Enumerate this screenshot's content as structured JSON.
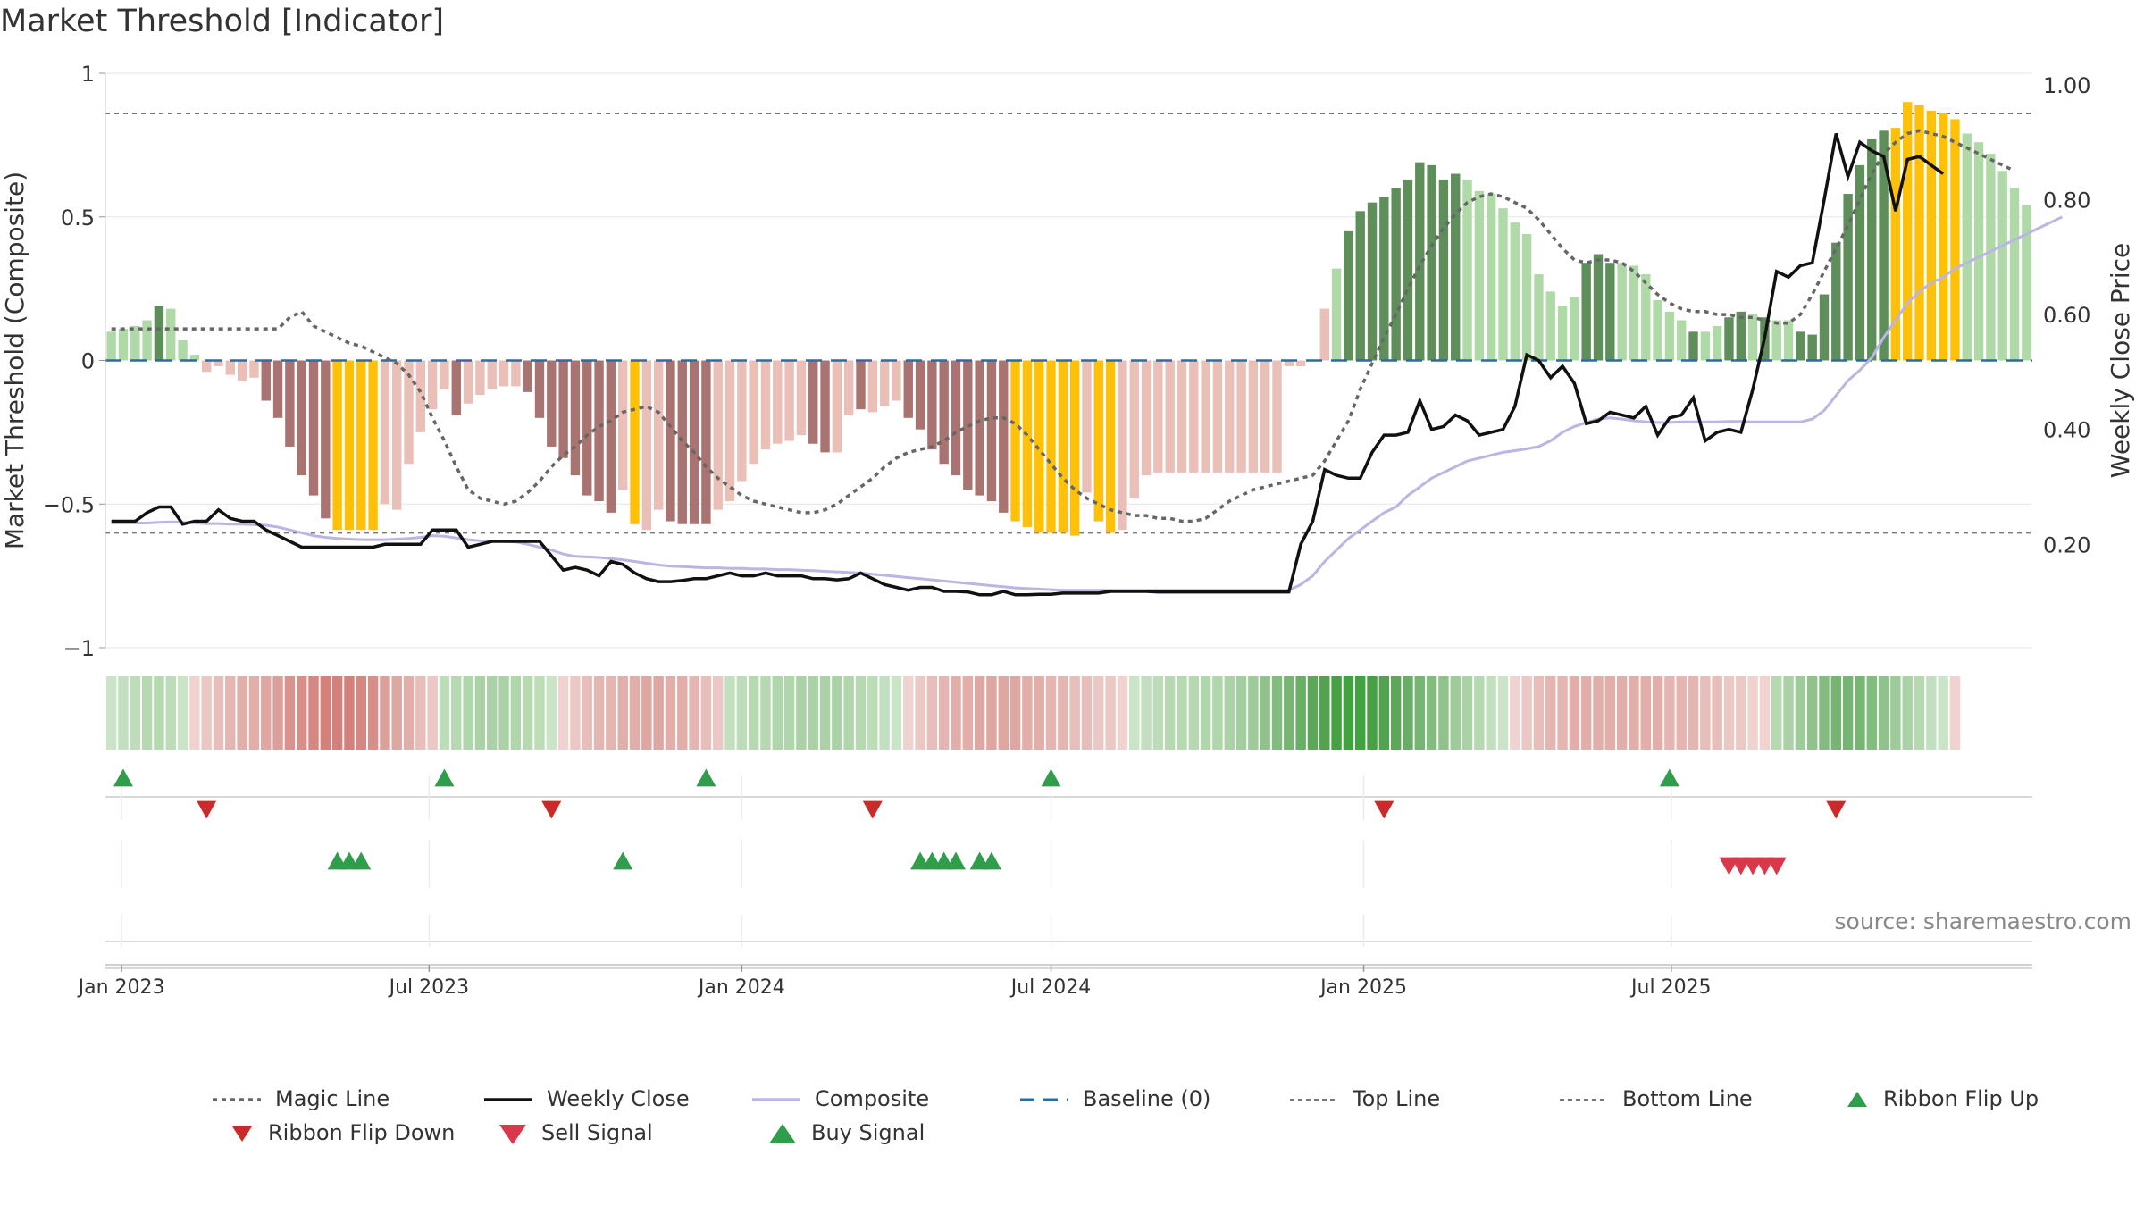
{
  "title": "Market Threshold [Indicator]",
  "source": "source: sharemaestro.com",
  "colors": {
    "pos_strong": "#5e8f5a",
    "pos_weak": "#b0d9a8",
    "neg_strong": "#a87370",
    "neg_weak": "#eabfb8",
    "extreme": "#ffc107",
    "close": "#111111",
    "composite": "#bbb5e3",
    "magic": "#666666",
    "baseline": "#2e6b9e",
    "threshold": "#777777",
    "buy": "#2e9e4a",
    "sell": "#d9384a",
    "flip_down": "#c92a2a"
  },
  "chart_data": {
    "type": "bar",
    "title": "Market Threshold [Indicator]",
    "ylabel": "Market Threshold (Composite)",
    "y2label": "Weekly Close Price",
    "ylim": [
      -1,
      1
    ],
    "y2lim": [
      0.02,
      1.02
    ],
    "yticks": [
      "1",
      "0.5",
      "0",
      "−0.5",
      "−1"
    ],
    "y2ticks": [
      "1.00",
      "0.80",
      "0.60",
      "0.40",
      "0.20"
    ],
    "x_ticks": [
      "Jan 2023",
      "Jul 2023",
      "Jan 2024",
      "Jul 2024",
      "Jan 2025",
      "Jul 2025"
    ],
    "x_start": "2022-12-26",
    "top_line": 0.86,
    "bottom_line": -0.6,
    "baseline": 0,
    "bars": [
      0.1,
      0.11,
      0.12,
      0.14,
      0.19,
      0.18,
      0.07,
      0.02,
      -0.04,
      -0.02,
      -0.05,
      -0.07,
      -0.06,
      -0.14,
      -0.2,
      -0.3,
      -0.4,
      -0.47,
      -0.55,
      -0.59,
      -0.59,
      -0.59,
      -0.59,
      -0.5,
      -0.52,
      -0.36,
      -0.25,
      -0.17,
      -0.1,
      -0.19,
      -0.15,
      -0.12,
      -0.1,
      -0.09,
      -0.09,
      -0.11,
      -0.2,
      -0.3,
      -0.34,
      -0.4,
      -0.47,
      -0.49,
      -0.53,
      -0.45,
      -0.57,
      -0.59,
      -0.52,
      -0.56,
      -0.57,
      -0.57,
      -0.57,
      -0.52,
      -0.49,
      -0.42,
      -0.36,
      -0.31,
      -0.29,
      -0.28,
      -0.26,
      -0.29,
      -0.32,
      -0.32,
      -0.19,
      -0.17,
      -0.18,
      -0.16,
      -0.14,
      -0.2,
      -0.24,
      -0.31,
      -0.36,
      -0.4,
      -0.45,
      -0.47,
      -0.49,
      -0.53,
      -0.56,
      -0.58,
      -0.6,
      -0.6,
      -0.6,
      -0.61,
      -0.46,
      -0.56,
      -0.6,
      -0.59,
      -0.48,
      -0.4,
      -0.39,
      -0.39,
      -0.39,
      -0.39,
      -0.39,
      -0.39,
      -0.39,
      -0.39,
      -0.39,
      -0.39,
      -0.39,
      -0.02,
      -0.02,
      0.0,
      0.18,
      0.32,
      0.45,
      0.52,
      0.55,
      0.57,
      0.6,
      0.63,
      0.69,
      0.68,
      0.63,
      0.65,
      0.63,
      0.59,
      0.58,
      0.53,
      0.48,
      0.44,
      0.3,
      0.24,
      0.19,
      0.22,
      0.34,
      0.37,
      0.34,
      0.34,
      0.33,
      0.3,
      0.21,
      0.17,
      0.14,
      0.1,
      0.1,
      0.12,
      0.15,
      0.17,
      0.16,
      0.15,
      0.14,
      0.14,
      0.1,
      0.09,
      0.23,
      0.41,
      0.58,
      0.68,
      0.77,
      0.8,
      0.81,
      0.9,
      0.89,
      0.87,
      0.86,
      0.84,
      0.79,
      0.76,
      0.72,
      0.66,
      0.6,
      0.54
    ],
    "bar_classes": [
      "pos_weak",
      "pos_weak",
      "pos_weak",
      "pos_weak",
      "pos_strong",
      "pos_weak",
      "pos_weak",
      "pos_weak",
      "neg_weak",
      "neg_weak",
      "neg_weak",
      "neg_weak",
      "neg_weak",
      "neg_strong",
      "neg_strong",
      "neg_strong",
      "neg_strong",
      "neg_strong",
      "neg_strong",
      "extreme",
      "extreme",
      "extreme",
      "extreme",
      "neg_weak",
      "neg_weak",
      "neg_weak",
      "neg_weak",
      "neg_weak",
      "neg_weak",
      "neg_strong",
      "neg_weak",
      "neg_weak",
      "neg_weak",
      "neg_weak",
      "neg_weak",
      "neg_strong",
      "neg_strong",
      "neg_strong",
      "neg_strong",
      "neg_strong",
      "neg_strong",
      "neg_strong",
      "neg_strong",
      "neg_weak",
      "extreme",
      "neg_weak",
      "neg_weak",
      "neg_strong",
      "neg_strong",
      "neg_strong",
      "neg_strong",
      "neg_weak",
      "neg_weak",
      "neg_weak",
      "neg_weak",
      "neg_weak",
      "neg_weak",
      "neg_weak",
      "neg_weak",
      "neg_strong",
      "neg_strong",
      "neg_weak",
      "neg_weak",
      "neg_strong",
      "neg_weak",
      "neg_weak",
      "neg_weak",
      "neg_strong",
      "neg_strong",
      "neg_strong",
      "neg_strong",
      "neg_strong",
      "neg_strong",
      "neg_strong",
      "neg_strong",
      "neg_strong",
      "extreme",
      "extreme",
      "extreme",
      "extreme",
      "extreme",
      "extreme",
      "neg_weak",
      "extreme",
      "extreme",
      "neg_weak",
      "neg_weak",
      "neg_weak",
      "neg_weak",
      "neg_weak",
      "neg_weak",
      "neg_weak",
      "neg_weak",
      "neg_weak",
      "neg_weak",
      "neg_weak",
      "neg_weak",
      "neg_weak",
      "neg_weak",
      "neg_weak",
      "neg_weak",
      "neg_weak",
      "neg_weak",
      "pos_weak",
      "pos_strong",
      "pos_strong",
      "pos_strong",
      "pos_strong",
      "pos_strong",
      "pos_strong",
      "pos_strong",
      "pos_strong",
      "pos_strong",
      "pos_strong",
      "pos_weak",
      "pos_weak",
      "pos_weak",
      "pos_weak",
      "pos_weak",
      "pos_weak",
      "pos_weak",
      "pos_weak",
      "pos_weak",
      "pos_weak",
      "pos_strong",
      "pos_strong",
      "pos_strong",
      "pos_weak",
      "pos_weak",
      "pos_weak",
      "pos_weak",
      "pos_weak",
      "pos_weak",
      "pos_strong",
      "pos_weak",
      "pos_weak",
      "pos_strong",
      "pos_strong",
      "pos_weak",
      "pos_strong",
      "pos_weak",
      "pos_weak",
      "pos_strong",
      "pos_strong",
      "pos_strong",
      "pos_strong",
      "pos_strong",
      "pos_strong",
      "pos_strong",
      "pos_strong",
      "extreme",
      "extreme",
      "extreme",
      "extreme",
      "extreme",
      "extreme",
      "pos_weak",
      "pos_weak",
      "pos_weak",
      "pos_weak",
      "pos_weak",
      "pos_weak",
      "pos_weak"
    ],
    "ribbon_colors": [
      "#c9e4c6",
      "#c2e0bf",
      "#bcddb8",
      "#b6d9b2",
      "#b6d9b2",
      "#bcddb8",
      "#c9e4c6",
      "#f0d3d1",
      "#ecc8c5",
      "#e8beba",
      "#e5b5b1",
      "#e2aeaa",
      "#e2aeaa",
      "#dfa7a2",
      "#dca09b",
      "#d9928d",
      "#d88f89",
      "#d58782",
      "#d3817b",
      "#d3817b",
      "#d3817b",
      "#d58782",
      "#d88f89",
      "#dca09b",
      "#dfa7a2",
      "#e2aeaa",
      "#e8beba",
      "#ecc8c5",
      "#bcddb8",
      "#b6d9b2",
      "#b0d6ac",
      "#aad2a6",
      "#aad2a6",
      "#aad2a6",
      "#b0d6ac",
      "#b6d9b2",
      "#bcddb8",
      "#c9e4c6",
      "#f0d3d1",
      "#ecc8c5",
      "#e8beba",
      "#e5b5b1",
      "#e5b5b1",
      "#e2aeaa",
      "#e2aeaa",
      "#dfa7a2",
      "#dfa7a2",
      "#e2aeaa",
      "#e2aeaa",
      "#e5b5b1",
      "#e8beba",
      "#ecc8c5",
      "#c2e0bf",
      "#bcddb8",
      "#b6d9b2",
      "#b6d9b2",
      "#b0d6ac",
      "#b0d6ac",
      "#aad2a6",
      "#aad2a6",
      "#aad2a6",
      "#aad2a6",
      "#b0d6ac",
      "#b6d9b2",
      "#bcddb8",
      "#c2e0bf",
      "#c9e4c6",
      "#f0d3d1",
      "#ecc8c5",
      "#e8beba",
      "#e5b5b1",
      "#e2aeaa",
      "#e2aeaa",
      "#dfa7a2",
      "#dfa7a2",
      "#dfa7a2",
      "#dfa7a2",
      "#e2aeaa",
      "#e2aeaa",
      "#e5b5b1",
      "#e5b5b1",
      "#e8beba",
      "#e8beba",
      "#ecc8c5",
      "#ecc8c5",
      "#f0d3d1",
      "#c9e4c6",
      "#c2e0bf",
      "#bcddb8",
      "#b6d9b2",
      "#b6d9b2",
      "#b6d9b2",
      "#b0d6ac",
      "#b0d6ac",
      "#aad2a6",
      "#a3cf9f",
      "#9dcb99",
      "#90c38c",
      "#83bc7f",
      "#76b572",
      "#69ae65",
      "#5ca758",
      "#52a24e",
      "#48a045",
      "#40a33f",
      "#40a33f",
      "#48a045",
      "#52a24e",
      "#5ca758",
      "#69ae65",
      "#76b572",
      "#83bc7f",
      "#90c38c",
      "#9dcb99",
      "#aad2a6",
      "#b6d9b2",
      "#c2e0bf",
      "#c9e4c6",
      "#f0d3d1",
      "#ecc8c5",
      "#e8beba",
      "#e5b5b1",
      "#e5b5b1",
      "#e2aeaa",
      "#e2aeaa",
      "#e2aeaa",
      "#e2aeaa",
      "#e2aeaa",
      "#e2aeaa",
      "#e2aeaa",
      "#e2aeaa",
      "#e5b5b1",
      "#e5b5b1",
      "#e5b5b1",
      "#e8beba",
      "#e8beba",
      "#ecc8c5",
      "#ecc8c5",
      "#f0d3d1",
      "#f0d3d1",
      "#b6d9b2",
      "#aad2a6",
      "#9dcb99",
      "#90c38c",
      "#83bc7f",
      "#76b572",
      "#76b572",
      "#76b572",
      "#83bc7f",
      "#90c38c",
      "#9dcb99",
      "#aad2a6",
      "#b6d9b2",
      "#c2e0bf",
      "#c9e4c6",
      "#f0d3d1"
    ],
    "close": [
      0.24,
      0.24,
      0.24,
      0.255,
      0.265,
      0.265,
      0.235,
      0.24,
      0.24,
      0.26,
      0.245,
      0.24,
      0.24,
      0.225,
      0.215,
      0.205,
      0.195,
      0.195,
      0.195,
      0.195,
      0.195,
      0.195,
      0.195,
      0.2,
      0.2,
      0.2,
      0.2,
      0.225,
      0.225,
      0.225,
      0.195,
      0.2,
      0.205,
      0.205,
      0.205,
      0.205,
      0.205,
      0.18,
      0.155,
      0.16,
      0.155,
      0.145,
      0.17,
      0.165,
      0.15,
      0.14,
      0.135,
      0.135,
      0.137,
      0.14,
      0.14,
      0.145,
      0.15,
      0.145,
      0.145,
      0.15,
      0.145,
      0.145,
      0.145,
      0.14,
      0.14,
      0.138,
      0.14,
      0.15,
      0.14,
      0.13,
      0.125,
      0.12,
      0.125,
      0.125,
      0.118,
      0.118,
      0.117,
      0.112,
      0.112,
      0.118,
      0.112,
      0.112,
      0.113,
      0.113,
      0.115,
      0.115,
      0.115,
      0.115,
      0.118,
      0.118,
      0.118,
      0.118,
      0.117,
      0.117,
      0.117,
      0.117,
      0.117,
      0.117,
      0.117,
      0.117,
      0.117,
      0.117,
      0.117,
      0.117,
      0.2,
      0.24,
      0.33,
      0.32,
      0.315,
      0.315,
      0.36,
      0.39,
      0.39,
      0.395,
      0.45,
      0.4,
      0.405,
      0.425,
      0.415,
      0.39,
      0.395,
      0.4,
      0.44,
      0.53,
      0.52,
      0.49,
      0.51,
      0.48,
      0.41,
      0.415,
      0.43,
      0.425,
      0.42,
      0.44,
      0.39,
      0.42,
      0.425,
      0.455,
      0.38,
      0.395,
      0.4,
      0.395,
      0.47,
      0.56,
      0.675,
      0.665,
      0.685,
      0.69,
      0.8,
      0.915,
      0.84,
      0.9,
      0.885,
      0.875,
      0.78,
      0.87,
      0.875,
      0.86,
      0.845
    ],
    "composite": [
      0.237,
      0.237,
      0.237,
      0.237,
      0.238,
      0.239,
      0.238,
      0.237,
      0.236,
      0.236,
      0.235,
      0.235,
      0.234,
      0.233,
      0.23,
      0.225,
      0.22,
      0.215,
      0.212,
      0.21,
      0.209,
      0.208,
      0.208,
      0.208,
      0.209,
      0.21,
      0.212,
      0.215,
      0.214,
      0.211,
      0.208,
      0.206,
      0.205,
      0.205,
      0.204,
      0.2,
      0.195,
      0.19,
      0.183,
      0.179,
      0.178,
      0.177,
      0.175,
      0.173,
      0.17,
      0.167,
      0.164,
      0.162,
      0.161,
      0.16,
      0.159,
      0.159,
      0.158,
      0.158,
      0.157,
      0.157,
      0.156,
      0.156,
      0.155,
      0.154,
      0.153,
      0.152,
      0.151,
      0.15,
      0.148,
      0.146,
      0.144,
      0.142,
      0.14,
      0.138,
      0.136,
      0.134,
      0.132,
      0.13,
      0.128,
      0.126,
      0.124,
      0.123,
      0.122,
      0.121,
      0.12,
      0.12,
      0.12,
      0.12,
      0.12,
      0.12,
      0.12,
      0.12,
      0.12,
      0.12,
      0.12,
      0.12,
      0.12,
      0.12,
      0.12,
      0.12,
      0.12,
      0.12,
      0.12,
      0.12,
      0.13,
      0.145,
      0.17,
      0.19,
      0.21,
      0.225,
      0.24,
      0.255,
      0.265,
      0.285,
      0.3,
      0.315,
      0.325,
      0.335,
      0.345,
      0.35,
      0.355,
      0.36,
      0.363,
      0.366,
      0.37,
      0.38,
      0.395,
      0.405,
      0.412,
      0.418,
      0.42,
      0.418,
      0.415,
      0.413,
      0.412,
      0.412,
      0.413,
      0.413,
      0.413,
      0.413,
      0.414,
      0.414,
      0.413,
      0.413,
      0.413,
      0.413,
      0.413,
      0.418,
      0.433,
      0.459,
      0.485,
      0.503,
      0.525,
      0.56,
      0.59,
      0.62,
      0.64,
      0.655,
      0.665,
      0.68,
      0.69,
      0.7,
      0.71,
      0.72,
      0.73,
      0.74,
      0.75,
      0.76,
      0.77
    ],
    "magic": [
      0.11,
      0.11,
      0.11,
      0.11,
      0.11,
      0.11,
      0.11,
      0.11,
      0.11,
      0.11,
      0.11,
      0.11,
      0.11,
      0.11,
      0.11,
      0.15,
      0.17,
      0.12,
      0.1,
      0.08,
      0.06,
      0.05,
      0.03,
      0.01,
      -0.01,
      -0.05,
      -0.11,
      -0.2,
      -0.28,
      -0.37,
      -0.45,
      -0.48,
      -0.49,
      -0.5,
      -0.49,
      -0.46,
      -0.42,
      -0.37,
      -0.33,
      -0.3,
      -0.26,
      -0.23,
      -0.21,
      -0.18,
      -0.17,
      -0.16,
      -0.18,
      -0.23,
      -0.28,
      -0.32,
      -0.37,
      -0.41,
      -0.44,
      -0.47,
      -0.49,
      -0.5,
      -0.51,
      -0.52,
      -0.53,
      -0.53,
      -0.52,
      -0.5,
      -0.47,
      -0.44,
      -0.41,
      -0.37,
      -0.34,
      -0.32,
      -0.31,
      -0.3,
      -0.28,
      -0.25,
      -0.23,
      -0.21,
      -0.2,
      -0.2,
      -0.22,
      -0.26,
      -0.31,
      -0.36,
      -0.41,
      -0.45,
      -0.48,
      -0.5,
      -0.52,
      -0.53,
      -0.54,
      -0.54,
      -0.55,
      -0.55,
      -0.56,
      -0.56,
      -0.55,
      -0.52,
      -0.49,
      -0.47,
      -0.45,
      -0.44,
      -0.43,
      -0.42,
      -0.41,
      -0.4,
      -0.35,
      -0.28,
      -0.21,
      -0.1,
      -0.01,
      0.08,
      0.16,
      0.25,
      0.33,
      0.4,
      0.46,
      0.51,
      0.55,
      0.57,
      0.58,
      0.57,
      0.55,
      0.53,
      0.49,
      0.44,
      0.39,
      0.35,
      0.34,
      0.35,
      0.35,
      0.34,
      0.31,
      0.27,
      0.23,
      0.2,
      0.18,
      0.17,
      0.17,
      0.16,
      0.16,
      0.15,
      0.15,
      0.14,
      0.13,
      0.13,
      0.16,
      0.23,
      0.31,
      0.39,
      0.47,
      0.56,
      0.65,
      0.72,
      0.76,
      0.79,
      0.8,
      0.79,
      0.78,
      0.76,
      0.74,
      0.72,
      0.7,
      0.68,
      0.66
    ],
    "ribbon_flip_up": [
      1,
      28,
      50,
      79,
      131
    ],
    "ribbon_flip_down": [
      8,
      37,
      64,
      107,
      145
    ],
    "buy_signal": [
      19,
      20,
      21,
      43,
      68,
      69,
      70,
      71,
      73,
      74
    ],
    "sell_signal": [
      136,
      137,
      138,
      139,
      140
    ]
  },
  "legend": [
    {
      "key": "magic",
      "label": "Magic Line"
    },
    {
      "key": "close",
      "label": "Weekly Close"
    },
    {
      "key": "composite",
      "label": "Composite"
    },
    {
      "key": "baseline",
      "label": "Baseline (0)"
    },
    {
      "key": "top",
      "label": "Top Line"
    },
    {
      "key": "bottom",
      "label": "Bottom Line"
    },
    {
      "key": "flip_up",
      "label": "Ribbon Flip Up"
    },
    {
      "key": "flip_down",
      "label": "Ribbon Flip Down"
    },
    {
      "key": "sell",
      "label": "Sell Signal"
    },
    {
      "key": "buy",
      "label": "Buy Signal"
    }
  ]
}
